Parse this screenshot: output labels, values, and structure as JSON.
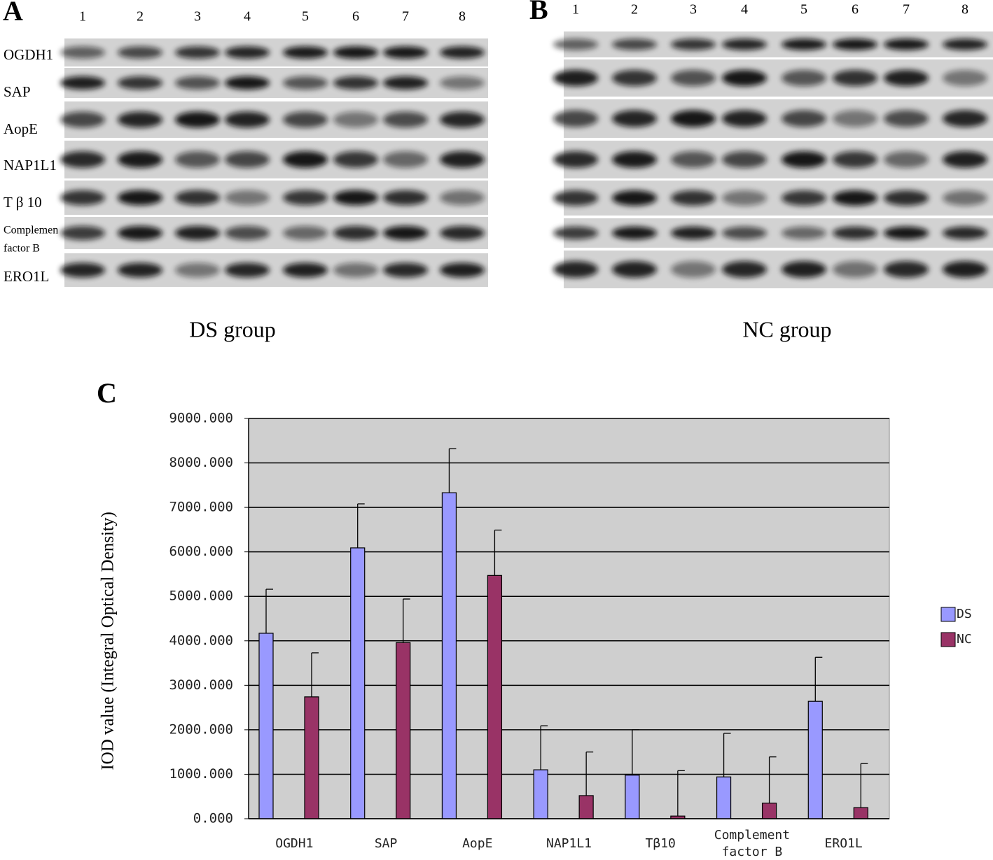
{
  "panel_a": {
    "label": "A",
    "lanes": [
      "1",
      "2",
      "3",
      "4",
      "5",
      "6",
      "7",
      "8"
    ],
    "proteins": [
      [
        "OGDH1"
      ],
      [
        "SAP"
      ],
      [
        "AopE"
      ],
      [
        "NAP1L1"
      ],
      [
        "T β 10"
      ],
      [
        "Complemen",
        "factor B"
      ],
      [
        "ERO1L"
      ]
    ],
    "caption": "DS group"
  },
  "panel_b": {
    "label": "B",
    "lanes": [
      "1",
      "2",
      "3",
      "4",
      "5",
      "6",
      "7",
      "8"
    ],
    "caption": "NC group"
  },
  "chart_data": {
    "type": "bar",
    "panel_label": "C",
    "ylabel": "IOD value (Integral Optical Density)",
    "categories": [
      [
        "OGDH1"
      ],
      [
        "SAP"
      ],
      [
        "AopE"
      ],
      [
        "NAP1L1"
      ],
      [
        "Tβ10"
      ],
      [
        "Complement",
        "factor B"
      ],
      [
        "ERO1L"
      ]
    ],
    "series": [
      {
        "name": "DS",
        "color": "#9999ff",
        "values": [
          4170,
          6090,
          7330,
          1100,
          980,
          940,
          2640
        ],
        "errors": [
          990,
          990,
          990,
          990,
          1020,
          980,
          990
        ]
      },
      {
        "name": "NC",
        "color": "#993366",
        "values": [
          2740,
          3960,
          5470,
          520,
          60,
          350,
          250
        ],
        "errors": [
          990,
          980,
          1020,
          980,
          1020,
          1040,
          990
        ]
      }
    ],
    "ylim": [
      0,
      9000
    ],
    "yticks": [
      {
        "value": 0,
        "label": "0.000"
      },
      {
        "value": 1000,
        "label": "1000.000"
      },
      {
        "value": 2000,
        "label": "2000.000"
      },
      {
        "value": 3000,
        "label": "3000.000"
      },
      {
        "value": 4000,
        "label": "4000.000"
      },
      {
        "value": 5000,
        "label": "5000.000"
      },
      {
        "value": 6000,
        "label": "6000.000"
      },
      {
        "value": 7000,
        "label": "7000.000"
      },
      {
        "value": 8000,
        "label": "8000.000"
      },
      {
        "value": 9000,
        "label": "9000.000"
      }
    ],
    "grid": true,
    "legend": "right"
  }
}
